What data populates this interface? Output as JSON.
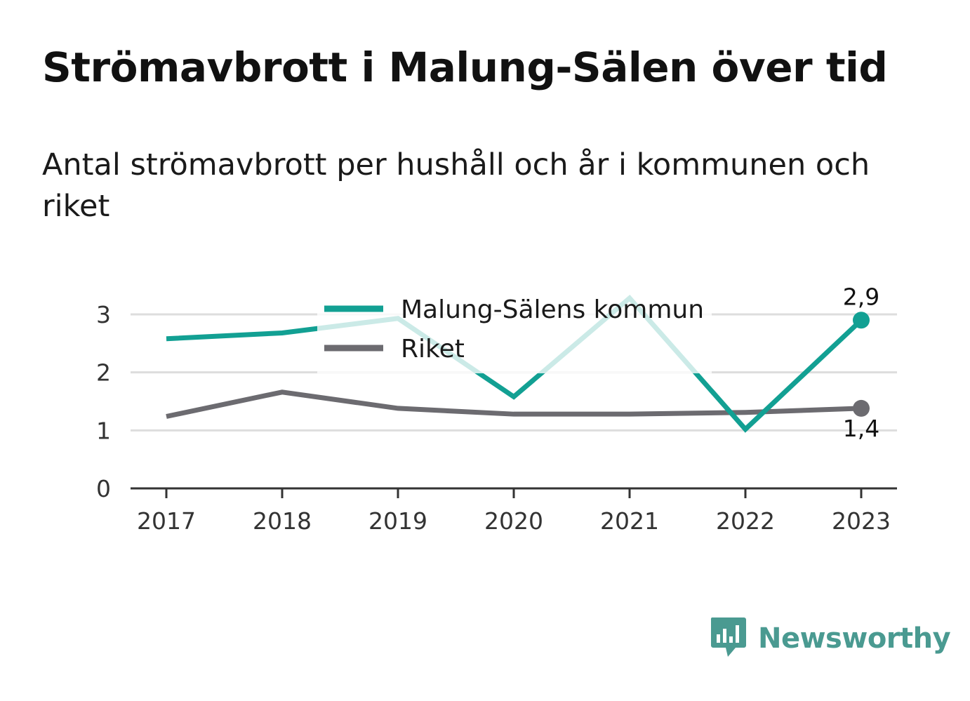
{
  "title": "Strömavbrott i Malung-Sälen över tid",
  "subtitle": "Antal strömavbrott per hushåll och år i kommunen och riket",
  "brand": {
    "name": "Newsworthy",
    "icon": "bar-chart-logo-icon",
    "color": "#4a9a91"
  },
  "chart_data": {
    "type": "line",
    "x": [
      2017,
      2018,
      2019,
      2020,
      2021,
      2022,
      2023
    ],
    "x_tick_labels": [
      "2017",
      "2018",
      "2019",
      "2020",
      "2021",
      "2022",
      "2023"
    ],
    "ylim": [
      0,
      3.3
    ],
    "y_ticks": [
      0,
      1,
      2,
      3
    ],
    "y_tick_labels": [
      "0",
      "1",
      "2",
      "3"
    ],
    "grid": true,
    "legend_position": "top-center",
    "series": [
      {
        "name": "Malung-Sälens kommun",
        "color": "#12a093",
        "values": [
          2.58,
          2.68,
          2.93,
          1.58,
          3.28,
          1.02,
          2.9
        ],
        "end_label": "2,9"
      },
      {
        "name": "Riket",
        "color": "#6c6b70",
        "values": [
          1.24,
          1.66,
          1.38,
          1.28,
          1.28,
          1.31,
          1.38
        ],
        "end_label": "1,4"
      }
    ]
  }
}
